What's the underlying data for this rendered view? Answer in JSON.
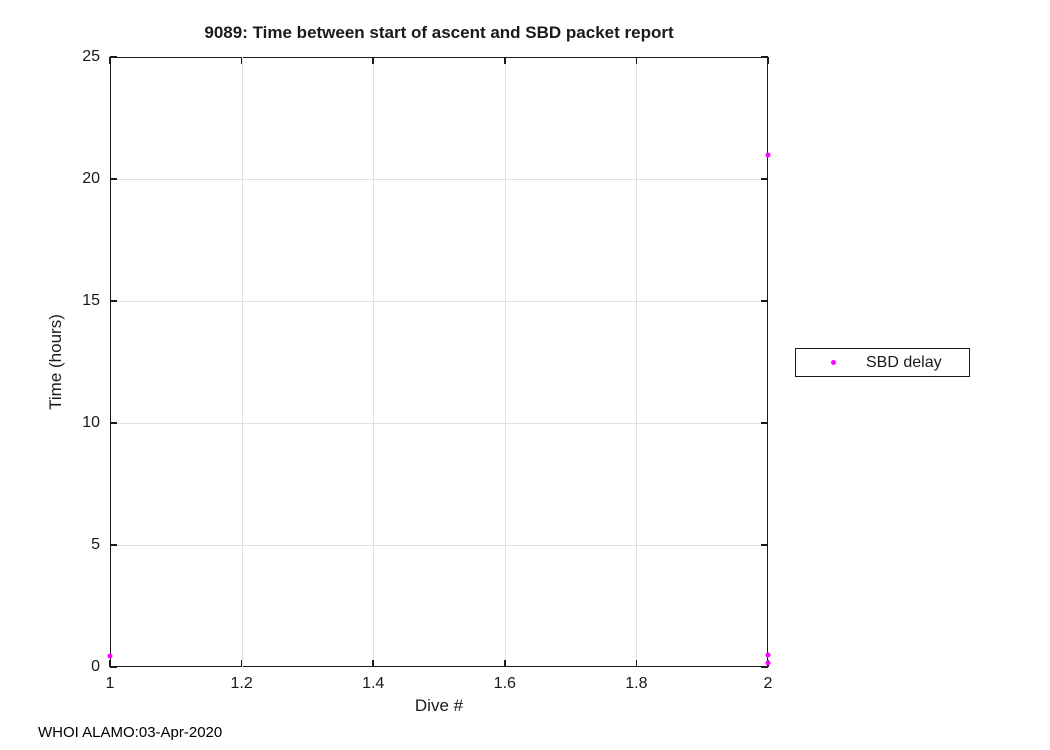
{
  "figure": {
    "footer": "WHOI ALAMO:03-Apr-2020"
  },
  "chart_data": {
    "type": "scatter",
    "title": "9089: Time between start of ascent and SBD packet report",
    "xlabel": "Dive #",
    "ylabel": "Time (hours)",
    "xlim": [
      1,
      2
    ],
    "ylim": [
      0,
      25
    ],
    "xticks": [
      1,
      1.2,
      1.4,
      1.6,
      1.8,
      2
    ],
    "xtick_labels": [
      "1",
      "1.2",
      "1.4",
      "1.6",
      "1.8",
      "2"
    ],
    "yticks": [
      0,
      5,
      10,
      15,
      20,
      25
    ],
    "ytick_labels": [
      "0",
      "5",
      "10",
      "15",
      "20",
      "25"
    ],
    "grid": true,
    "legend": {
      "position": "right-outside",
      "entries": [
        {
          "label": "SBD delay",
          "marker": "point",
          "marker_color": "#FF00FF"
        }
      ]
    },
    "series": [
      {
        "name": "SBD delay",
        "color": "#FF00FF",
        "marker": "point",
        "points": [
          {
            "x": 1,
            "y": 0.45
          },
          {
            "x": 2,
            "y": 21.0
          },
          {
            "x": 2,
            "y": 0.5
          },
          {
            "x": 2,
            "y": 0.15
          }
        ]
      }
    ],
    "colors": {
      "axis": "#1a1a1a",
      "grid": "#e0e0e0",
      "background": "#ffffff"
    }
  }
}
